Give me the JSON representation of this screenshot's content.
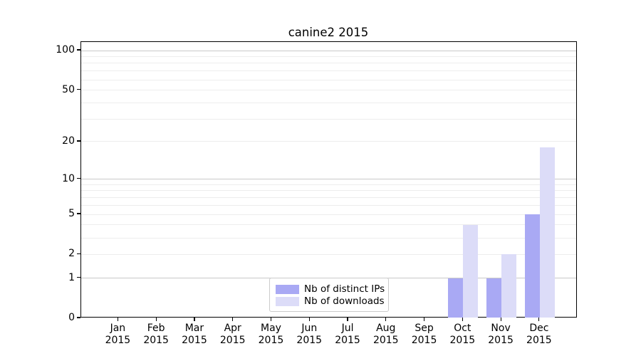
{
  "title": "canine2 2015",
  "chart_data": {
    "type": "bar",
    "title": "canine2 2015",
    "x": {
      "months": [
        "Jan",
        "Feb",
        "Mar",
        "Apr",
        "May",
        "Jun",
        "Jul",
        "Aug",
        "Sep",
        "Oct",
        "Nov",
        "Dec"
      ],
      "year": "2015"
    },
    "series": [
      {
        "name": "Nb of distinct IPs",
        "color": "#a9a9f4",
        "values": [
          0,
          0,
          0,
          0,
          0,
          0,
          0,
          0,
          0,
          1,
          1,
          5
        ]
      },
      {
        "name": "Nb of downloads",
        "color": "#dcdcf8",
        "values": [
          0,
          0,
          0,
          0,
          0,
          0,
          0,
          0,
          0,
          4,
          2,
          18
        ]
      }
    ],
    "y_axis": {
      "scale": "symlog",
      "tick_labels": [
        "0",
        "1",
        "2",
        "5",
        "10",
        "20",
        "50",
        "100"
      ],
      "tick_values": [
        0,
        1,
        2,
        5,
        10,
        20,
        50,
        100
      ],
      "major_grid_values": [
        1,
        10,
        100
      ],
      "minor_grid_values": [
        2,
        3,
        4,
        5,
        6,
        7,
        8,
        9,
        20,
        30,
        40,
        50,
        60,
        70,
        80,
        90
      ],
      "ymax": 100
    },
    "legend_position": "bottom-center",
    "grid": true,
    "colors": {
      "major_grid": "#c9c9c9",
      "minor_grid": "#ededed",
      "axis": "#000000",
      "text": "#000000",
      "background": "#ffffff"
    }
  }
}
